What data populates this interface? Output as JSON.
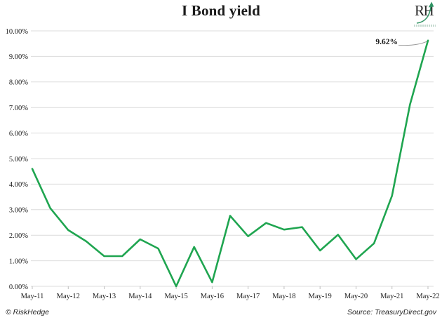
{
  "header": {
    "title": "I Bond yield",
    "logo_text": "RH"
  },
  "chart_data": {
    "type": "line",
    "title": "I Bond yield",
    "categories": [
      "May-11",
      "Nov-11",
      "May-12",
      "Nov-12",
      "May-13",
      "Nov-13",
      "May-14",
      "Nov-14",
      "May-15",
      "Nov-15",
      "May-16",
      "Nov-16",
      "May-17",
      "Nov-17",
      "May-18",
      "Nov-18",
      "May-19",
      "Nov-19",
      "May-20",
      "Nov-20",
      "May-21",
      "Nov-21",
      "May-22"
    ],
    "values": [
      4.6,
      3.06,
      2.2,
      1.76,
      1.18,
      1.18,
      1.84,
      1.48,
      0.0,
      1.54,
      0.16,
      2.76,
      1.96,
      2.48,
      2.22,
      2.32,
      1.4,
      2.02,
      1.06,
      1.68,
      3.54,
      7.12,
      9.62
    ],
    "xlabel": "",
    "ylabel": "",
    "ylim": [
      0,
      10
    ],
    "grid": true,
    "legend": "none",
    "line_color": "#1fa550",
    "grid_color": "#dcdcdc",
    "tick_color": "#bdbdbd",
    "y_ticks": [
      {
        "value": 0,
        "label": "0.00%"
      },
      {
        "value": 1,
        "label": "1.00%"
      },
      {
        "value": 2,
        "label": "2.00%"
      },
      {
        "value": 3,
        "label": "3.00%"
      },
      {
        "value": 4,
        "label": "4.00%"
      },
      {
        "value": 5,
        "label": "5.00%"
      },
      {
        "value": 6,
        "label": "6.00%"
      },
      {
        "value": 7,
        "label": "7.00%"
      },
      {
        "value": 8,
        "label": "8.00%"
      },
      {
        "value": 9,
        "label": "9.00%"
      },
      {
        "value": 10,
        "label": "10.00%"
      }
    ],
    "x_ticks": [
      {
        "index": 0,
        "label": "May-11"
      },
      {
        "index": 2,
        "label": "May-12"
      },
      {
        "index": 4,
        "label": "May-13"
      },
      {
        "index": 6,
        "label": "May-14"
      },
      {
        "index": 8,
        "label": "May-15"
      },
      {
        "index": 10,
        "label": "May-16"
      },
      {
        "index": 12,
        "label": "May-17"
      },
      {
        "index": 14,
        "label": "May-18"
      },
      {
        "index": 16,
        "label": "May-19"
      },
      {
        "index": 18,
        "label": "May-20"
      },
      {
        "index": 20,
        "label": "May-21"
      },
      {
        "index": 22,
        "label": "May-22"
      }
    ],
    "annotation": {
      "text": "9.62%",
      "target_category": "May-22",
      "value": 9.62
    }
  },
  "footer": {
    "copyright": "© RiskHedge",
    "source": "Source: TreasuryDirect.gov"
  }
}
